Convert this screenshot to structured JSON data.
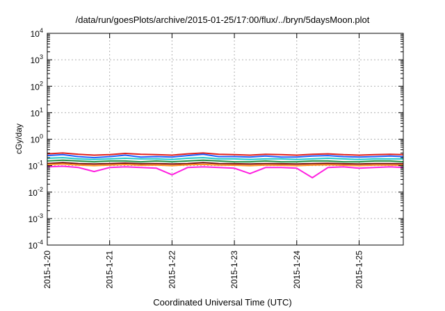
{
  "chart_data": {
    "type": "line",
    "title": "/data/run/goesPlots/archive/2015-01-25/17:00/flux/../bryn/5daysMoon.plot",
    "xlabel": "Coordinated Universal Time (UTC)",
    "ylabel": "cGy/day",
    "y_scale": "log",
    "ylim": [
      0.0001,
      10000
    ],
    "xlim": [
      "2015-01-20",
      "2015-01-25 17:00"
    ],
    "x_tick_labels": [
      "2015-1-20",
      "2015-1-21",
      "2015-1-22",
      "2015-1-23",
      "2015-1-24",
      "2015-1-25"
    ],
    "y_tick_labels": [
      {
        "base": "10",
        "exp": "-4"
      },
      {
        "base": "10",
        "exp": "-3"
      },
      {
        "base": "10",
        "exp": "-2"
      },
      {
        "base": "10",
        "exp": "-1"
      },
      {
        "base": "10",
        "exp": "0"
      },
      {
        "base": "10",
        "exp": "1"
      },
      {
        "base": "10",
        "exp": "2"
      },
      {
        "base": "10",
        "exp": "3"
      },
      {
        "base": "10",
        "exp": "4"
      }
    ],
    "grid": true,
    "x_days": [
      "2015-01-20",
      "2015-01-20 06:00",
      "2015-01-20 12:00",
      "2015-01-20 18:00",
      "2015-01-21",
      "2015-01-21 06:00",
      "2015-01-21 12:00",
      "2015-01-21 18:00",
      "2015-01-22",
      "2015-01-22 06:00",
      "2015-01-22 12:00",
      "2015-01-22 18:00",
      "2015-01-23",
      "2015-01-23 06:00",
      "2015-01-23 12:00",
      "2015-01-23 18:00",
      "2015-01-24",
      "2015-01-24 06:00",
      "2015-01-24 12:00",
      "2015-01-24 18:00",
      "2015-01-25",
      "2015-01-25 06:00",
      "2015-01-25 12:00",
      "2015-01-25 17:00"
    ],
    "series": [
      {
        "color": "#e0201c",
        "values": [
          0.28,
          0.3,
          0.27,
          0.25,
          0.26,
          0.29,
          0.27,
          0.26,
          0.25,
          0.28,
          0.3,
          0.27,
          0.26,
          0.25,
          0.27,
          0.26,
          0.25,
          0.27,
          0.28,
          0.26,
          0.25,
          0.26,
          0.27,
          0.26
        ]
      },
      {
        "color": "#2060ff",
        "values": [
          0.24,
          0.26,
          0.22,
          0.2,
          0.22,
          0.25,
          0.21,
          0.22,
          0.21,
          0.24,
          0.27,
          0.22,
          0.22,
          0.21,
          0.23,
          0.21,
          0.21,
          0.23,
          0.24,
          0.22,
          0.21,
          0.22,
          0.23,
          0.22
        ]
      },
      {
        "color": "#20c8c8",
        "values": [
          0.19,
          0.2,
          0.18,
          0.17,
          0.18,
          0.19,
          0.18,
          0.18,
          0.17,
          0.19,
          0.2,
          0.18,
          0.18,
          0.17,
          0.18,
          0.18,
          0.17,
          0.18,
          0.19,
          0.18,
          0.17,
          0.18,
          0.18,
          0.18
        ]
      },
      {
        "color": "#209040",
        "values": [
          0.15,
          0.16,
          0.15,
          0.14,
          0.15,
          0.15,
          0.14,
          0.15,
          0.14,
          0.15,
          0.16,
          0.15,
          0.14,
          0.14,
          0.15,
          0.14,
          0.14,
          0.15,
          0.15,
          0.14,
          0.14,
          0.15,
          0.15,
          0.14
        ]
      },
      {
        "color": "#7a1010",
        "values": [
          0.12,
          0.13,
          0.12,
          0.115,
          0.12,
          0.125,
          0.118,
          0.12,
          0.115,
          0.12,
          0.13,
          0.12,
          0.118,
          0.115,
          0.12,
          0.118,
          0.115,
          0.12,
          0.122,
          0.118,
          0.115,
          0.12,
          0.12,
          0.118
        ]
      },
      {
        "color": "#ff8c1a",
        "values": [
          0.11,
          0.115,
          0.105,
          0.1,
          0.105,
          0.11,
          0.104,
          0.105,
          0.1,
          0.108,
          0.112,
          0.105,
          0.104,
          0.1,
          0.106,
          0.104,
          0.1,
          0.106,
          0.108,
          0.104,
          0.1,
          0.105,
          0.106,
          0.104
        ]
      },
      {
        "color": "#ff20e0",
        "values": [
          0.09,
          0.095,
          0.085,
          0.06,
          0.085,
          0.09,
          0.085,
          0.08,
          0.045,
          0.085,
          0.09,
          0.085,
          0.08,
          0.05,
          0.085,
          0.085,
          0.08,
          0.035,
          0.085,
          0.09,
          0.08,
          0.085,
          0.09,
          0.085
        ]
      }
    ]
  }
}
